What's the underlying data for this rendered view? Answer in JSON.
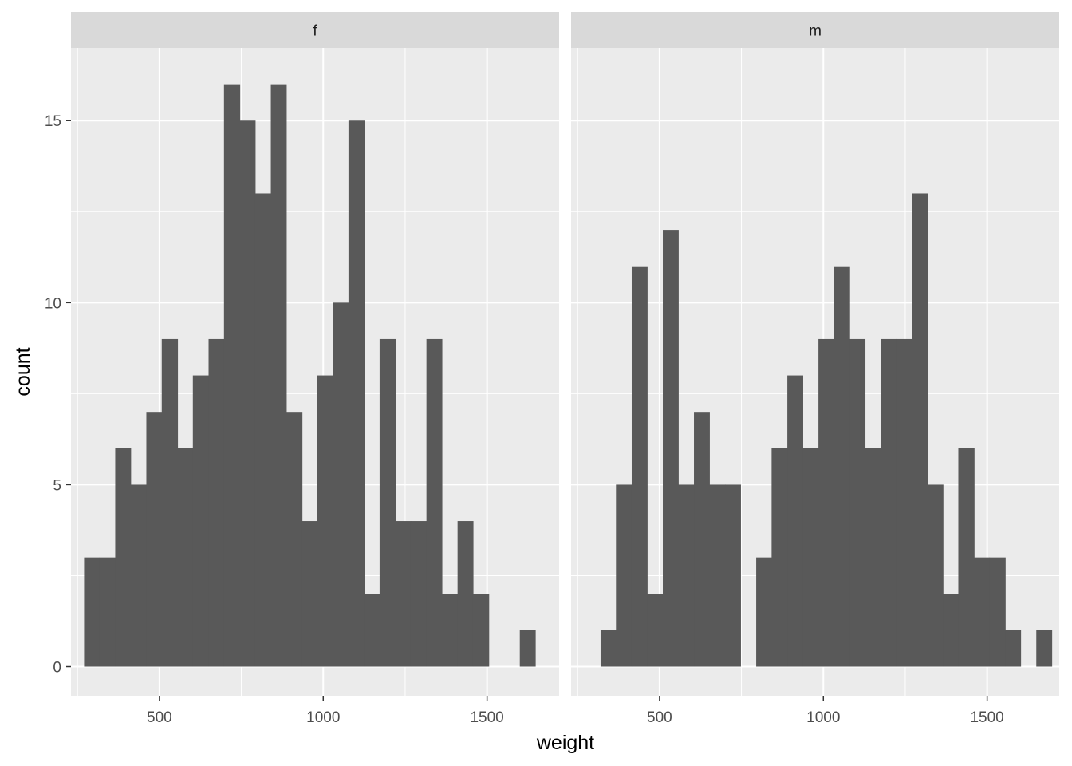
{
  "chart_data": {
    "type": "bar",
    "subtype": "faceted-histogram",
    "xlabel": "weight",
    "ylabel": "count",
    "xlim": [
      230,
      1720
    ],
    "ylim": [
      -0.8,
      17.0
    ],
    "x_ticks": [
      500,
      1000,
      1500
    ],
    "x_tick_labels": [
      "500",
      "1000",
      "1500"
    ],
    "y_ticks": [
      0,
      5,
      10,
      15
    ],
    "y_tick_labels": [
      "0",
      "5",
      "10",
      "15"
    ],
    "grid": true,
    "bar_color": "#595959",
    "panel_background": "#ebebeb",
    "strip_background": "#d9d9d9",
    "facets": [
      {
        "label": "f",
        "bins": [
          {
            "x0": 270,
            "x1": 317,
            "count": 3
          },
          {
            "x0": 317,
            "x1": 365,
            "count": 3
          },
          {
            "x0": 365,
            "x1": 412,
            "count": 6
          },
          {
            "x0": 412,
            "x1": 460,
            "count": 5
          },
          {
            "x0": 460,
            "x1": 507,
            "count": 7
          },
          {
            "x0": 507,
            "x1": 555,
            "count": 9
          },
          {
            "x0": 555,
            "x1": 602,
            "count": 6
          },
          {
            "x0": 602,
            "x1": 650,
            "count": 8
          },
          {
            "x0": 650,
            "x1": 697,
            "count": 9
          },
          {
            "x0": 697,
            "x1": 745,
            "count": 16
          },
          {
            "x0": 745,
            "x1": 792,
            "count": 15
          },
          {
            "x0": 792,
            "x1": 840,
            "count": 13
          },
          {
            "x0": 840,
            "x1": 887,
            "count": 16
          },
          {
            "x0": 887,
            "x1": 935,
            "count": 7
          },
          {
            "x0": 935,
            "x1": 982,
            "count": 4
          },
          {
            "x0": 982,
            "x1": 1030,
            "count": 8
          },
          {
            "x0": 1030,
            "x1": 1077,
            "count": 10
          },
          {
            "x0": 1077,
            "x1": 1125,
            "count": 15
          },
          {
            "x0": 1125,
            "x1": 1172,
            "count": 2
          },
          {
            "x0": 1172,
            "x1": 1220,
            "count": 9
          },
          {
            "x0": 1220,
            "x1": 1267,
            "count": 4
          },
          {
            "x0": 1267,
            "x1": 1315,
            "count": 4
          },
          {
            "x0": 1315,
            "x1": 1362,
            "count": 9
          },
          {
            "x0": 1362,
            "x1": 1410,
            "count": 2
          },
          {
            "x0": 1410,
            "x1": 1457,
            "count": 4
          },
          {
            "x0": 1457,
            "x1": 1505,
            "count": 2
          },
          {
            "x0": 1505,
            "x1": 1552,
            "count": 0
          },
          {
            "x0": 1552,
            "x1": 1600,
            "count": 0
          },
          {
            "x0": 1600,
            "x1": 1647,
            "count": 1
          }
        ]
      },
      {
        "label": "m",
        "bins": [
          {
            "x0": 320,
            "x1": 367,
            "count": 1
          },
          {
            "x0": 367,
            "x1": 415,
            "count": 5
          },
          {
            "x0": 415,
            "x1": 462,
            "count": 11
          },
          {
            "x0": 462,
            "x1": 510,
            "count": 2
          },
          {
            "x0": 510,
            "x1": 557,
            "count": 12
          },
          {
            "x0": 557,
            "x1": 605,
            "count": 5
          },
          {
            "x0": 605,
            "x1": 652,
            "count": 7
          },
          {
            "x0": 652,
            "x1": 700,
            "count": 5
          },
          {
            "x0": 700,
            "x1": 747,
            "count": 5
          },
          {
            "x0": 747,
            "x1": 795,
            "count": 0
          },
          {
            "x0": 795,
            "x1": 842,
            "count": 3
          },
          {
            "x0": 842,
            "x1": 890,
            "count": 6
          },
          {
            "x0": 890,
            "x1": 937,
            "count": 8
          },
          {
            "x0": 937,
            "x1": 985,
            "count": 6
          },
          {
            "x0": 985,
            "x1": 1032,
            "count": 9
          },
          {
            "x0": 1032,
            "x1": 1080,
            "count": 11
          },
          {
            "x0": 1080,
            "x1": 1127,
            "count": 9
          },
          {
            "x0": 1127,
            "x1": 1175,
            "count": 6
          },
          {
            "x0": 1175,
            "x1": 1222,
            "count": 9
          },
          {
            "x0": 1222,
            "x1": 1270,
            "count": 9
          },
          {
            "x0": 1270,
            "x1": 1317,
            "count": 13
          },
          {
            "x0": 1317,
            "x1": 1365,
            "count": 5
          },
          {
            "x0": 1365,
            "x1": 1412,
            "count": 2
          },
          {
            "x0": 1412,
            "x1": 1460,
            "count": 6
          },
          {
            "x0": 1460,
            "x1": 1507,
            "count": 3
          },
          {
            "x0": 1507,
            "x1": 1555,
            "count": 3
          },
          {
            "x0": 1555,
            "x1": 1602,
            "count": 1
          },
          {
            "x0": 1602,
            "x1": 1650,
            "count": 0
          },
          {
            "x0": 1650,
            "x1": 1697,
            "count": 1
          }
        ]
      }
    ]
  }
}
